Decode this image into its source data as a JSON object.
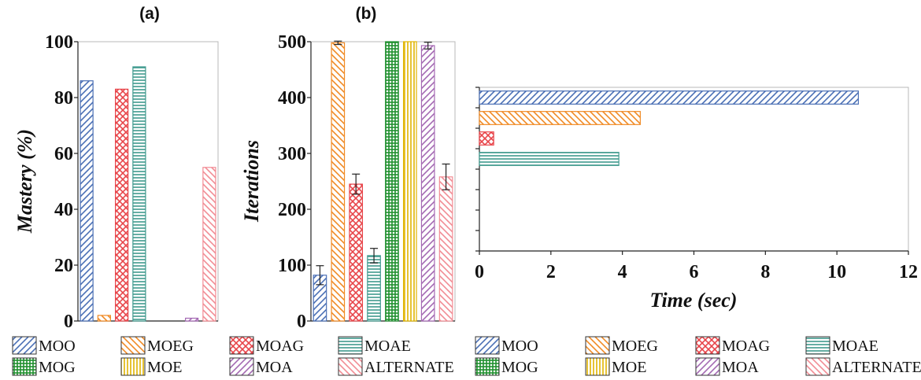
{
  "chart_data": [
    {
      "type": "bar",
      "title": "(a)",
      "xlabel": "",
      "ylabel": "Mastery (%)",
      "ylim": [
        0,
        100
      ],
      "yticks": [
        0,
        20,
        40,
        60,
        80,
        100
      ],
      "grid": false,
      "categories": [
        "MOO",
        "MOEG",
        "MOAG",
        "MOAE",
        "MOG",
        "MOE",
        "MOA",
        "ALTERNATE"
      ],
      "values": [
        86,
        2,
        83,
        91,
        0,
        0,
        1,
        55
      ]
    },
    {
      "type": "bar",
      "title": "(b)",
      "xlabel": "",
      "ylabel": "Iterations",
      "ylim": [
        0,
        500
      ],
      "yticks": [
        0,
        100,
        200,
        300,
        400,
        500
      ],
      "grid": false,
      "categories": [
        "MOO",
        "MOEG",
        "MOAG",
        "MOAE",
        "MOG",
        "MOE",
        "MOA",
        "ALTERNATE"
      ],
      "values": [
        82,
        498,
        245,
        117,
        500,
        500,
        493,
        258
      ],
      "errors": [
        17,
        3,
        18,
        13,
        0,
        0,
        6,
        23
      ]
    },
    {
      "type": "bar",
      "orientation": "horizontal",
      "title": "",
      "xlabel": "Time (sec)",
      "ylabel": "",
      "xlim": [
        0,
        12
      ],
      "xticks": [
        0,
        2,
        4,
        6,
        8,
        10,
        12
      ],
      "grid": false,
      "categories": [
        "MOO",
        "MOEG",
        "MOAG",
        "MOAE",
        "MOG",
        "MOE",
        "MOA",
        "ALTERNATE"
      ],
      "values": [
        10.6,
        4.5,
        0.4,
        3.9,
        0,
        0,
        0,
        0
      ]
    }
  ],
  "legend": {
    "placement": "bottom",
    "items": [
      {
        "label": "MOO",
        "color": "#4a6fb5",
        "pattern": "diag-right"
      },
      {
        "label": "MOEG",
        "color": "#f08a24",
        "pattern": "diag-left"
      },
      {
        "label": "MOAG",
        "color": "#e8454a",
        "pattern": "crosshatch"
      },
      {
        "label": "MOAE",
        "color": "#3f9a8e",
        "pattern": "horizontal"
      },
      {
        "label": "MOG",
        "color": "#1f8f2e",
        "pattern": "grid"
      },
      {
        "label": "MOE",
        "color": "#e0b400",
        "pattern": "vertical"
      },
      {
        "label": "MOA",
        "color": "#a469b3",
        "pattern": "diag-right"
      },
      {
        "label": "ALTERNATE",
        "color": "#f28c94",
        "pattern": "diag-left"
      }
    ]
  }
}
